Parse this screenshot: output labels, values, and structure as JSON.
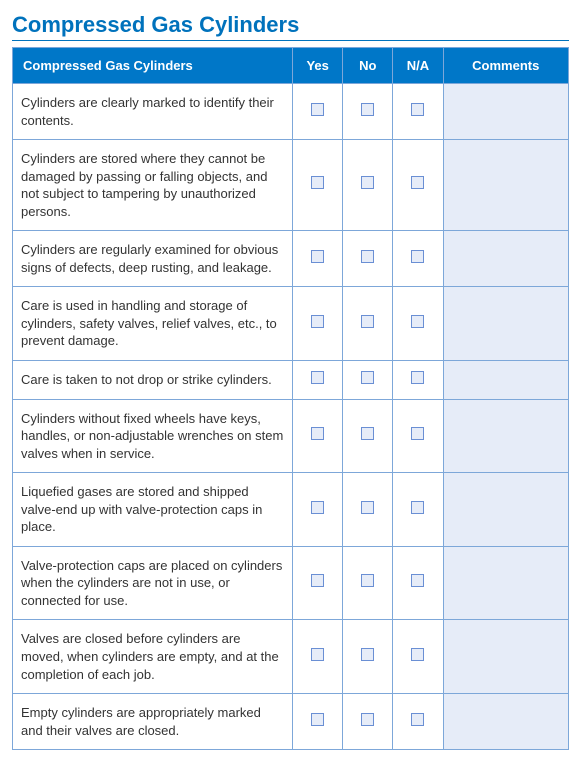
{
  "title": "Compressed Gas Cylinders",
  "colors": {
    "brand": "#0072bc",
    "header_bg": "#0077c8",
    "header_text": "#ffffff",
    "border": "#7da7d9",
    "check_bg": "#e6ecf8",
    "check_border": "#6a8fd4",
    "comments_bg": "#e6ecf8",
    "body_text": "#333333"
  },
  "columns": {
    "item": "Compressed Gas Cylinders",
    "yes": "Yes",
    "no": "No",
    "na": "N/A",
    "comments": "Comments"
  },
  "rows": [
    {
      "text": "Cylinders are clearly marked to identify their contents."
    },
    {
      "text": "Cylinders are stored where they cannot be damaged by passing or falling objects, and not subject to tampering by unauthorized persons."
    },
    {
      "text": "Cylinders are regularly examined for obvious signs of defects, deep rusting, and leakage."
    },
    {
      "text": "Care is used in handling and storage of cylinders, safety valves, relief valves, etc., to prevent damage."
    },
    {
      "text": "Care is taken to not drop or strike cylinders."
    },
    {
      "text": "Cylinders without fixed wheels have keys, handles, or non-adjustable wrenches on stem valves when in service."
    },
    {
      "text": "Liquefied gases are stored and shipped valve-end up with valve-protection caps in place."
    },
    {
      "text": "Valve-protection caps are placed on cylinders when the cylinders are not in use, or connected for use."
    },
    {
      "text": "Valves are closed before cylinders are moved, when cylinders are empty, and at the completion of each job."
    },
    {
      "text": "Empty cylinders are appropriately marked and their valves are closed."
    }
  ]
}
